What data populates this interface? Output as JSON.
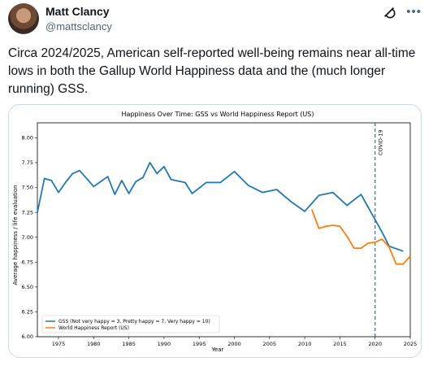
{
  "tweet": {
    "author_name": "Matt Clancy",
    "author_handle": "@mattsclancy",
    "text": "Circa 2024/2025, American self-reported well-being remains near all-time lows in both the Gallup World Happiness data and the (much longer running) GSS."
  },
  "icons": {
    "grok": "grok-icon",
    "more": "more-icon"
  },
  "colors": {
    "gss": "#1f77b4",
    "whr": "#ff7f0e",
    "covid": "#1f77b4"
  },
  "chart_data": {
    "type": "line",
    "title": "Happiness Over Time: GSS vs World Happiness Report (US)",
    "xlabel": "Year",
    "ylabel": "Average happiness / life evaluation",
    "xlim": [
      1972,
      2025
    ],
    "ylim": [
      6.0,
      8.15
    ],
    "xticks": [
      1975,
      1980,
      1985,
      1990,
      1995,
      2000,
      2005,
      2010,
      2015,
      2020,
      2025
    ],
    "yticks": [
      6.0,
      6.25,
      6.5,
      6.75,
      7.0,
      7.25,
      7.5,
      7.75,
      8.0
    ],
    "grid": false,
    "legend_position": "bottom-left",
    "annotation": {
      "x": 2020,
      "label": "COVID-19"
    },
    "series": [
      {
        "name": "GSS (Not very happy = 3, Pretty happy = 7, Very happy = 10)",
        "x": [
          1972,
          1973,
          1974,
          1975,
          1976,
          1977,
          1978,
          1980,
          1982,
          1983,
          1984,
          1985,
          1986,
          1987,
          1988,
          1989,
          1990,
          1991,
          1993,
          1994,
          1996,
          1998,
          2000,
          2002,
          2004,
          2006,
          2008,
          2010,
          2012,
          2014,
          2016,
          2018,
          2021,
          2022,
          2024
        ],
        "y": [
          7.25,
          7.59,
          7.57,
          7.45,
          7.55,
          7.64,
          7.67,
          7.51,
          7.61,
          7.43,
          7.57,
          7.44,
          7.56,
          7.6,
          7.75,
          7.64,
          7.71,
          7.58,
          7.55,
          7.44,
          7.55,
          7.55,
          7.66,
          7.52,
          7.45,
          7.48,
          7.36,
          7.26,
          7.42,
          7.45,
          7.32,
          7.43,
          7.05,
          6.91,
          6.86
        ]
      },
      {
        "name": "World Happiness Report (US)",
        "x": [
          2011,
          2012,
          2013,
          2014,
          2015,
          2016,
          2017,
          2018,
          2019,
          2020,
          2021,
          2022,
          2023,
          2024,
          2025
        ],
        "y": [
          7.28,
          7.09,
          7.11,
          7.12,
          7.11,
          7.01,
          6.89,
          6.89,
          6.94,
          6.95,
          6.98,
          6.9,
          6.73,
          6.73,
          6.81
        ]
      }
    ]
  }
}
